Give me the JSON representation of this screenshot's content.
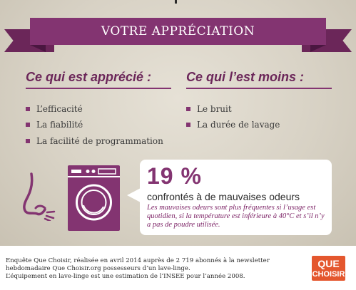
{
  "banner": {
    "title": "VOTRE APPRÉCIATION"
  },
  "appreciated": {
    "title": "Ce qui est apprécié :",
    "items": [
      "L’efficacité",
      "La fiabilité",
      "La facilité de programmation"
    ]
  },
  "less_appreciated": {
    "title": "Ce qui l’est moins :",
    "items": [
      "Le bruit",
      "La durée de lavage"
    ]
  },
  "stat": {
    "value": "19 %",
    "label": "confrontés à de mauvaises odeurs",
    "note": "Les mauvaises odeurs sont plus fréquentes si l’usage est quotidien, si la température est inférieure à 40°C et s’il n’y a pas de poudre utilisée."
  },
  "footer": {
    "lines": [
      "Enquête Que Choisir, réalisée en avril 2014 auprès de 2 719 abonnés à la newsletter",
      "hebdomadaire Que Choisir.org possesseurs d’un lave-linge.",
      "L’équipement en lave-linge est une estimation de l’INSEE pour l’année 2008."
    ]
  },
  "logo": {
    "line1": "QUE",
    "line2": "CHOISIR"
  },
  "colors": {
    "accent": "#833471",
    "accent_dark": "#6b2659",
    "background": "#d8d3c8",
    "logo": "#e4572e"
  },
  "icons": {
    "nose": "nose-icon",
    "washing_machine": "washing-machine-icon"
  }
}
